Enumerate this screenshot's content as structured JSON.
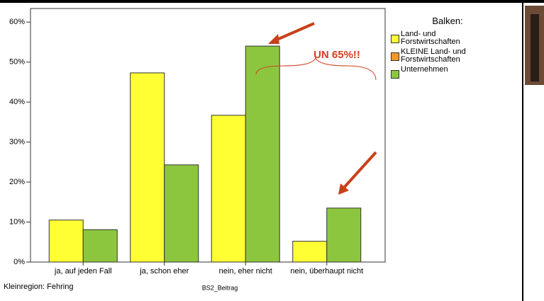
{
  "chart_data": {
    "type": "bar",
    "categories": [
      "ja, auf jeden Fall",
      "ja, schon eher",
      "nein, eher nicht",
      "nein, überhaupt nicht"
    ],
    "series": [
      {
        "name": "Land- und Forstwirtschaften",
        "color": "#ffff33",
        "values": [
          10.5,
          47.3,
          36.7,
          5.2
        ]
      },
      {
        "name": "KLEINE Land- und Forstwirtschaften",
        "color": "#f5962a",
        "values": [
          null,
          null,
          null,
          null
        ]
      },
      {
        "name": "Unternehmen",
        "color": "#8cc63f",
        "values": [
          8.1,
          24.3,
          54.0,
          13.5
        ]
      }
    ],
    "ylim": [
      0,
      63.4
    ],
    "yticks": [
      {
        "value": 0,
        "label": "0%"
      },
      {
        "value": 10,
        "label": "10%"
      },
      {
        "value": 20,
        "label": "20%"
      },
      {
        "value": 30,
        "label": "30%"
      },
      {
        "value": 40,
        "label": "40%"
      },
      {
        "value": 50,
        "label": "50%"
      },
      {
        "value": 60,
        "label": "60%"
      }
    ],
    "legend_title": "Balken:",
    "xlabel": "BS2_Beitrag",
    "footnote": "Kleinregion: Fehring",
    "annotation": "UN 65%!!"
  }
}
